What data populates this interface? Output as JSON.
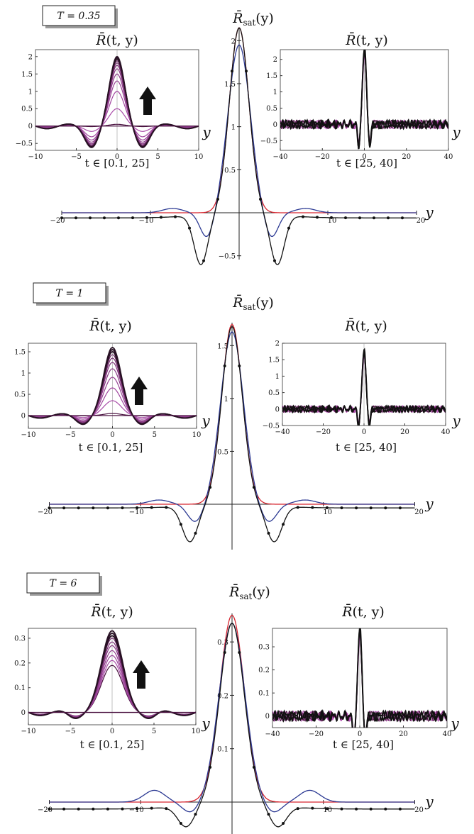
{
  "colors": {
    "red": "#d6242e",
    "blue": "#2c3a93",
    "black": "#111111",
    "purple_dark": "#4a1240",
    "purple_light": "#b453b4"
  },
  "icons": [
    "up-arrow-icon"
  ],
  "chart_data": [
    {
      "type": "line",
      "panel": "T = 0.35",
      "label": "T = 0.35",
      "main": {
        "title": "R̄sat(y)",
        "xlabel": "y",
        "xlim": [
          -20,
          20
        ],
        "ylim": [
          -0.55,
          2.2
        ],
        "yticks": [
          -0.5,
          0.5,
          1.0,
          1.5,
          2.0
        ],
        "xticks": [
          -20,
          -10,
          10,
          20
        ],
        "series_params": [
          {
            "color": "red",
            "amp": 2.15,
            "sigma": 1.55
          },
          {
            "color": "blue",
            "amp": 1.95,
            "sigma": 1.75,
            "neg_amp": 0.3,
            "neg_pos": 3.6,
            "neg_sigma": 1.1,
            "bump": 0.05,
            "bump_pos": 7.5
          },
          {
            "color": "black",
            "amp": 2.15,
            "sigma": 1.55,
            "neg_amp": 0.58,
            "neg_pos": 4.3,
            "neg_sigma": 1.1,
            "tail": 0.06,
            "markers": true
          }
        ]
      },
      "left_inset": {
        "title": "R̄(t, y)",
        "xlabel": "y",
        "subtitle": "t ∈ [0.1, 25]",
        "xlim": [
          -10,
          10
        ],
        "ylim": [
          -0.7,
          2.2
        ],
        "xticks": [
          -10,
          -5,
          0,
          5,
          10
        ],
        "yticks": [
          -0.5,
          0.0,
          0.5,
          1.0,
          1.5,
          2.0
        ],
        "family": {
          "amps": [
            0.05,
            0.5,
            1.0,
            1.3,
            1.5,
            1.65,
            1.75,
            1.82,
            1.88,
            1.93,
            1.97,
            2.0
          ],
          "sigma": 1.3,
          "neg_frac": 0.3,
          "neg_pos": 3.1
        }
      },
      "right_inset": {
        "title": "R̄(t, y)",
        "xlabel": "y",
        "subtitle": "t ∈ [25, 40]",
        "xlim": [
          -40,
          40
        ],
        "ylim": [
          -0.8,
          2.3
        ],
        "xticks": [
          -40,
          -20,
          0,
          20,
          40
        ],
        "yticks": [
          -0.5,
          0.0,
          0.5,
          1.0,
          1.5,
          2.0
        ],
        "peak": 2.25
      }
    },
    {
      "type": "line",
      "panel": "T = 1",
      "label": "T = 1",
      "main": {
        "title": "R̄sat(y)",
        "xlabel": "y",
        "xlim": [
          -20,
          20
        ],
        "ylim": [
          -0.3,
          1.75
        ],
        "yticks": [
          0.5,
          1.0,
          1.5
        ],
        "xticks": [
          -20,
          -10,
          10,
          20
        ],
        "series_params": [
          {
            "color": "red",
            "amp": 1.7,
            "sigma": 1.6
          },
          {
            "color": "blue",
            "amp": 1.63,
            "sigma": 1.75,
            "neg_amp": 0.17,
            "neg_pos": 4.0,
            "neg_sigma": 1.2,
            "bump": 0.04,
            "bump_pos": 8
          },
          {
            "color": "black",
            "amp": 1.68,
            "sigma": 1.6,
            "neg_amp": 0.34,
            "neg_pos": 4.6,
            "neg_sigma": 1.2,
            "tail": 0.035,
            "markers": true
          }
        ]
      },
      "left_inset": {
        "title": "R̄(t, y)",
        "xlabel": "y",
        "subtitle": "t ∈ [0.1, 25]",
        "xlim": [
          -10,
          10
        ],
        "ylim": [
          -0.3,
          1.7
        ],
        "xticks": [
          -10,
          -5,
          0,
          5,
          10
        ],
        "yticks": [
          0.0,
          0.5,
          1.0,
          1.5
        ],
        "family": {
          "amps": [
            0.05,
            0.35,
            0.65,
            0.9,
            1.1,
            1.25,
            1.35,
            1.43,
            1.5,
            1.55,
            1.6
          ],
          "sigma": 1.45,
          "neg_frac": 0.12,
          "neg_pos": 3.5
        }
      },
      "right_inset": {
        "title": "R̄(t, y)",
        "xlabel": "y",
        "subtitle": "t ∈ [25, 40]",
        "xlim": [
          -40,
          40
        ],
        "ylim": [
          -0.5,
          2.0
        ],
        "xticks": [
          -40,
          -20,
          0,
          20,
          40
        ],
        "yticks": [
          -0.5,
          0.0,
          0.5,
          1.0,
          1.5,
          2.0
        ],
        "peak": 1.72
      }
    },
    {
      "type": "line",
      "panel": "T = 6",
      "label": "T = 6",
      "main": {
        "title": "R̄sat(y)",
        "xlabel": "y",
        "xlim": [
          -20,
          20
        ],
        "ylim": [
          -0.05,
          0.36
        ],
        "yticks": [
          0.1,
          0.2,
          0.3
        ],
        "xticks": [
          -20,
          -10,
          10,
          20
        ],
        "series_params": [
          {
            "color": "red",
            "amp": 0.35,
            "sigma": 1.9
          },
          {
            "color": "blue",
            "amp": 0.335,
            "sigma": 2.0,
            "neg_amp": 0.02,
            "neg_pos": 4.5,
            "neg_sigma": 1.3,
            "bump": 0.022,
            "bump_pos": 8.5
          },
          {
            "color": "black",
            "amp": 0.335,
            "sigma": 1.9,
            "neg_amp": 0.04,
            "neg_pos": 5.0,
            "neg_sigma": 1.3,
            "tail": 0.013,
            "markers": true
          }
        ]
      },
      "left_inset": {
        "title": "R̄(t, y)",
        "xlabel": "y",
        "subtitle": "t ∈ [0.1, 25]",
        "xlim": [
          -10,
          10
        ],
        "ylim": [
          -0.05,
          0.34
        ],
        "xticks": [
          -10,
          -5,
          0,
          5,
          10
        ],
        "yticks": [
          0.0,
          0.1,
          0.2,
          0.3
        ],
        "family": {
          "amps": [
            0.19,
            0.21,
            0.23,
            0.25,
            0.27,
            0.285,
            0.3,
            0.31,
            0.32,
            0.33
          ],
          "sigma": 1.8,
          "neg_frac": 0.08,
          "neg_pos": 4.5
        }
      },
      "right_inset": {
        "title": "R̄(t, y)",
        "xlabel": "y",
        "subtitle": "t ∈ [25, 40]",
        "xlim": [
          -40,
          40
        ],
        "ylim": [
          -0.05,
          0.38
        ],
        "xticks": [
          -40,
          -20,
          0,
          20,
          40
        ],
        "yticks": [
          0.0,
          0.1,
          0.2,
          0.3
        ],
        "peak": 0.37
      }
    }
  ]
}
